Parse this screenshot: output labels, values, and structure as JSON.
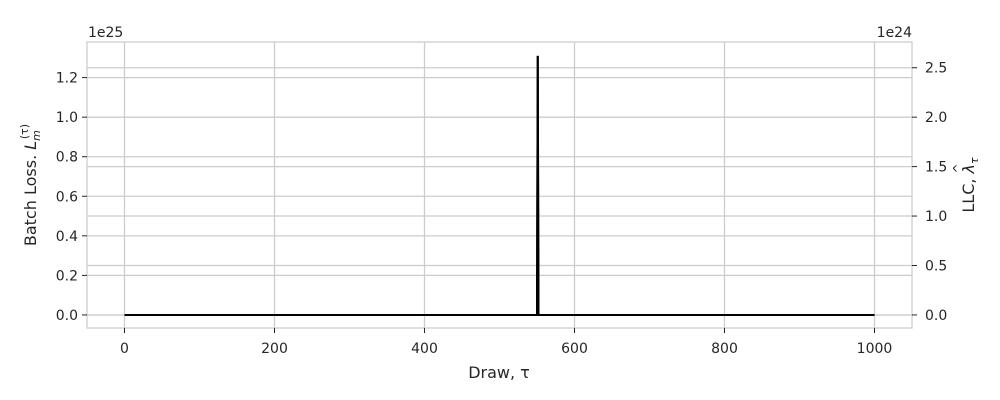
{
  "chart_data": {
    "type": "line",
    "x": [
      0,
      100,
      200,
      300,
      400,
      500,
      549,
      550,
      551,
      552,
      553,
      600,
      700,
      800,
      900,
      1000
    ],
    "series": [
      {
        "axis": "left",
        "values": [
          0,
          0,
          0,
          0,
          0,
          0,
          0,
          0,
          1.31e+25,
          0,
          0,
          0,
          0,
          0,
          0,
          0
        ]
      },
      {
        "axis": "right",
        "values": [
          0,
          0,
          0,
          0,
          0,
          0,
          0,
          0,
          2.62e+24,
          0,
          0,
          0,
          0,
          0,
          0,
          0
        ]
      }
    ],
    "xlabel": "Draw, τ",
    "ylabel_left_main": "Batch Loss. ",
    "ylabel_left_symbol": "L",
    "ylabel_left_sub": "m",
    "ylabel_left_sup": "(τ)",
    "ylabel_right_main": "LLC, ",
    "ylabel_right_symbol": "λ",
    "ylabel_right_hat": "^",
    "ylabel_right_sub": "τ",
    "xlim": [
      -50,
      1050
    ],
    "ylim_left": [
      -6.6e+23,
      1.38e+25
    ],
    "ylim_right": [
      -1.32e+23,
      2.76e+24
    ],
    "x_ticks": [
      0,
      200,
      400,
      600,
      800,
      1000
    ],
    "x_tick_labels": [
      "0",
      "200",
      "400",
      "600",
      "800",
      "1000"
    ],
    "y_left_ticks": [
      0,
      2e+24,
      4e+24,
      6e+24,
      8e+24,
      1e+25,
      1.2e+25
    ],
    "y_left_tick_labels": [
      "0.0",
      "0.2",
      "0.4",
      "0.6",
      "0.8",
      "1.0",
      "1.2"
    ],
    "y_right_ticks": [
      0,
      5e+23,
      1e+24,
      1.5e+24,
      2e+24,
      2.5e+24
    ],
    "y_right_tick_labels": [
      "0.0",
      "0.5",
      "1.0",
      "1.5",
      "2.0",
      "2.5"
    ],
    "left_offset_label": "1e25",
    "right_offset_label": "1e24",
    "grid": true,
    "line_color": "#000000",
    "grid_color": "#cccccc",
    "spine_color": "#cccccc",
    "text_color": "#262626"
  }
}
